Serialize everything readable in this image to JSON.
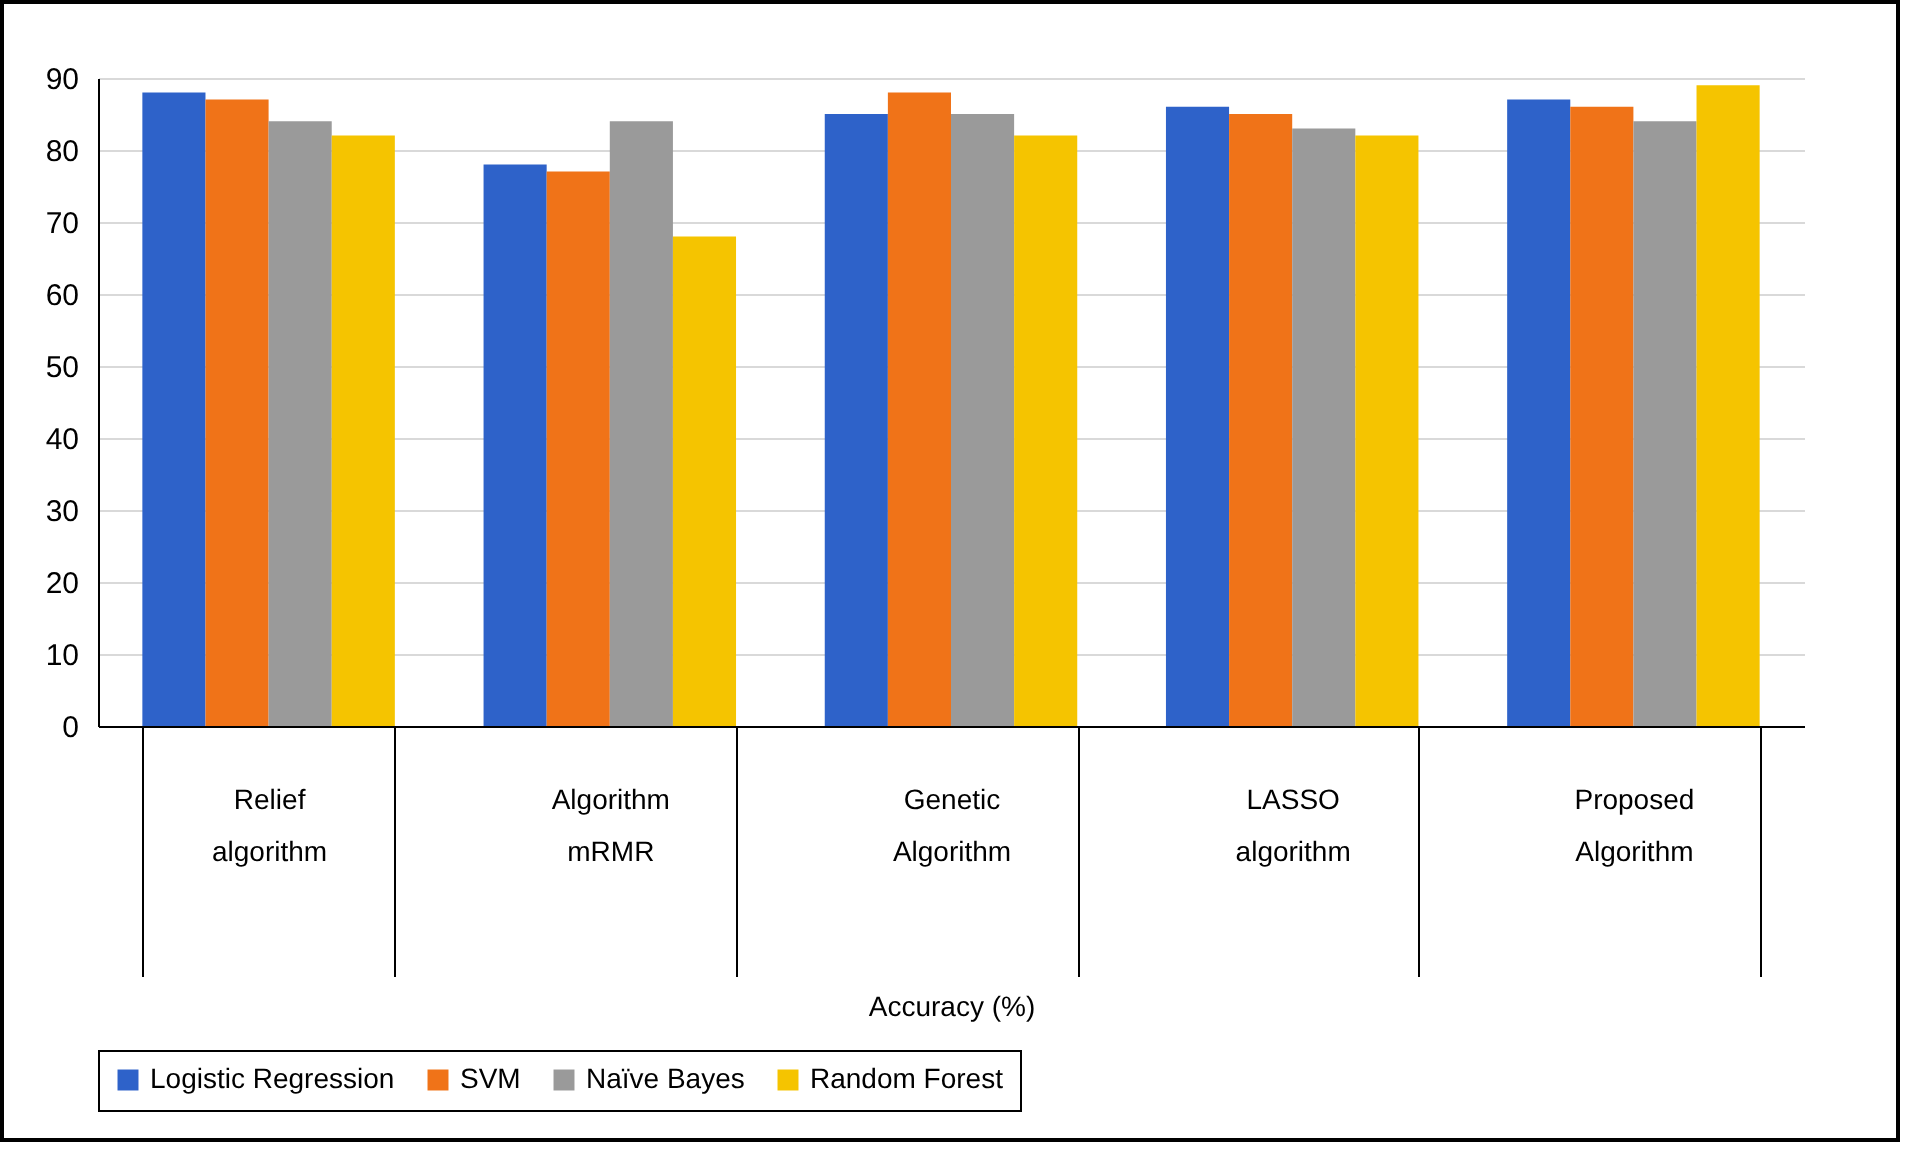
{
  "chart_data": {
    "type": "bar",
    "xlabel": "Accuracy (%)",
    "categories": [
      "Relief algorithm",
      "Algorithm mRMR",
      "Genetic Algorithm",
      "LASSO algorithm",
      "Proposed Algorithm"
    ],
    "series": [
      {
        "name": "Logistic Regression",
        "color": "#2e62c9",
        "values": [
          88,
          78,
          85,
          86,
          87
        ]
      },
      {
        "name": "SVM",
        "color": "#f07318",
        "values": [
          87,
          77,
          88,
          85,
          86
        ]
      },
      {
        "name": "Naïve Bayes",
        "color": "#9a9a9a",
        "values": [
          84,
          84,
          85,
          83,
          84
        ]
      },
      {
        "name": "Random Forest",
        "color": "#f5c400",
        "values": [
          82,
          68,
          82,
          82,
          89
        ]
      }
    ],
    "ylim": [
      0,
      90
    ],
    "yticks": [
      0,
      10,
      20,
      30,
      40,
      50,
      60,
      70,
      80,
      90
    ],
    "grid": "y",
    "legend": "bottom"
  }
}
